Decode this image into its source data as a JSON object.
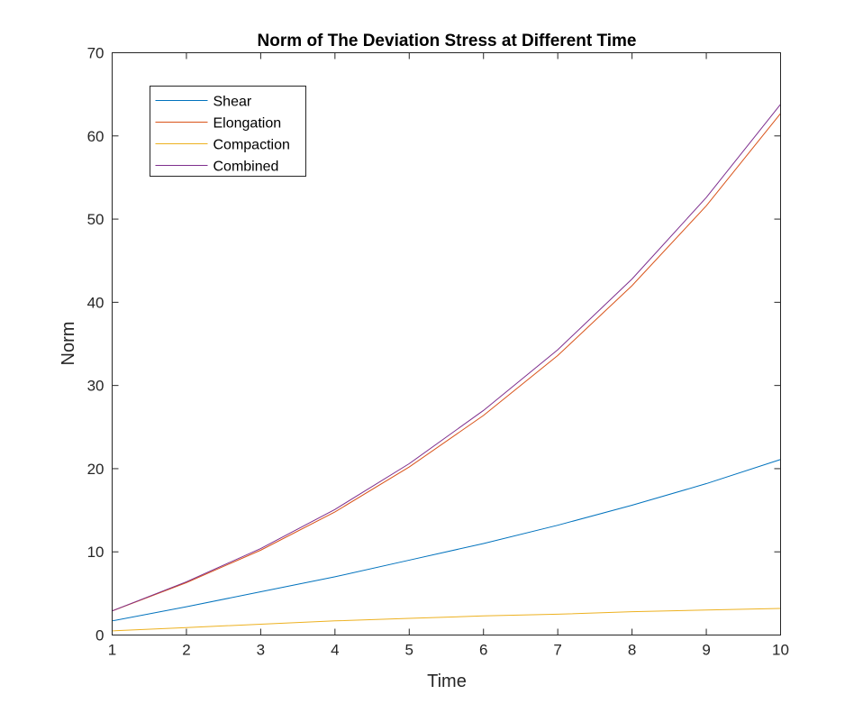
{
  "chart_data": {
    "type": "line",
    "title": "Norm of The Deviation Stress at Different Time",
    "xlabel": "Time",
    "ylabel": "Norm",
    "xlim": [
      1,
      10
    ],
    "ylim": [
      0,
      70
    ],
    "xticks": [
      1,
      2,
      3,
      4,
      5,
      6,
      7,
      8,
      9,
      10
    ],
    "yticks": [
      0,
      10,
      20,
      30,
      40,
      50,
      60,
      70
    ],
    "x": [
      1,
      2,
      3,
      4,
      5,
      6,
      7,
      8,
      9,
      10
    ],
    "grid": false,
    "legend_position": "top-left",
    "series": [
      {
        "name": "Shear",
        "color": "#0072BD",
        "values": [
          1.7,
          3.4,
          5.2,
          7.0,
          9.0,
          11.0,
          13.2,
          15.6,
          18.2,
          21.1
        ]
      },
      {
        "name": "Elongation",
        "color": "#D95319",
        "values": [
          2.9,
          6.3,
          10.2,
          14.8,
          20.2,
          26.4,
          33.6,
          42.0,
          51.6,
          62.7
        ]
      },
      {
        "name": "Compaction",
        "color": "#EDB120",
        "values": [
          0.5,
          0.9,
          1.3,
          1.7,
          2.0,
          2.3,
          2.5,
          2.8,
          3.0,
          3.2
        ]
      },
      {
        "name": "Combined",
        "color": "#7E2F8E",
        "values": [
          2.9,
          6.4,
          10.4,
          15.1,
          20.6,
          27.0,
          34.3,
          42.8,
          52.6,
          63.8
        ]
      }
    ]
  }
}
